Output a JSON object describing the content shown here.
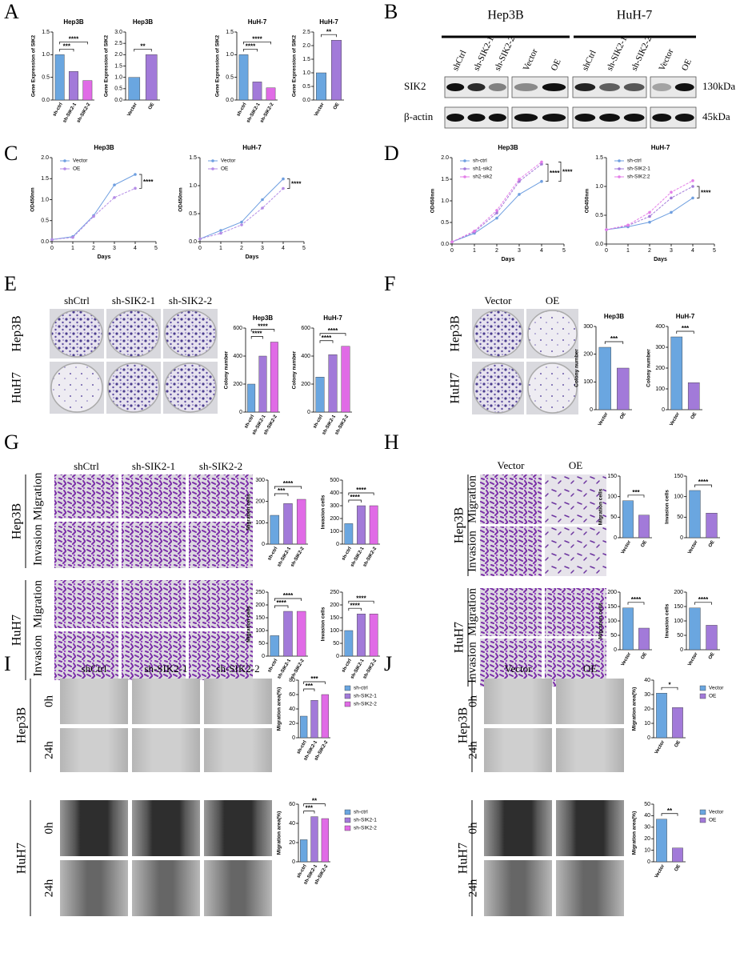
{
  "panel_labels": [
    "A",
    "B",
    "C",
    "D",
    "E",
    "F",
    "G",
    "H",
    "I",
    "J"
  ],
  "blot": {
    "groups": [
      "Hep3B",
      "HuH-7"
    ],
    "lanes": [
      [
        "shCtrl",
        "sh-SIK2-1",
        "sh-SIK2-2"
      ],
      [
        "Vector",
        "OE"
      ],
      [
        "shCtrl",
        "sh-SIK2-1",
        "sh-SIK2-2"
      ],
      [
        "Vector",
        "OE"
      ]
    ],
    "proteins": [
      "SIK2",
      "β-actin"
    ],
    "sizes": [
      "130kDa",
      "45kDa"
    ]
  },
  "image_panels": {
    "E": {
      "columns": [
        "shCtrl",
        "sh-SIK2-1",
        "sh-SIK2-2"
      ],
      "rows": [
        "Hep3B",
        "HuH7"
      ]
    },
    "F": {
      "columns": [
        "Vector",
        "OE"
      ],
      "rows": [
        "Hep3B",
        "HuH7"
      ]
    },
    "G": {
      "columns": [
        "shCtrl",
        "sh-SIK2-1",
        "sh-SIK2-2"
      ],
      "rows": [
        "Hep3B",
        "HuH7"
      ],
      "subrows": [
        [
          "Migration",
          "Invasion"
        ],
        [
          "Migration",
          "Invasion"
        ]
      ]
    },
    "H": {
      "columns": [
        "Vector",
        "OE"
      ],
      "rows": [
        "Hep3B",
        "HuH7"
      ],
      "subrows": [
        [
          "Migration",
          "Invasion"
        ],
        [
          "Migration",
          "Invasion"
        ]
      ]
    },
    "I": {
      "columns": [
        "shCtrl",
        "sh-SIK2-1",
        "sh-SIK2-2"
      ],
      "rows": [
        "Hep3B",
        "HuH7"
      ],
      "subrows": [
        [
          "0h",
          "24h"
        ],
        [
          "0h",
          "24h"
        ]
      ]
    },
    "J": {
      "columns": [
        "Vector",
        "OE"
      ],
      "rows": [
        "Hep3B",
        "HuH7"
      ],
      "subrows": [
        [
          "0h",
          "24h"
        ],
        [
          "0h",
          "24h"
        ]
      ]
    }
  },
  "chart_data": [
    {
      "type": "bar",
      "title": "Hep3B",
      "y_label": "Gene Expression of SIK2",
      "categories": [
        "sh-ctrl",
        "sh-SIK2-1",
        "sh-SIK2-2"
      ],
      "values": [
        1.0,
        0.63,
        0.43
      ],
      "colors": [
        "#6aa6e0",
        "#a27ad9",
        "#e06be6"
      ],
      "ylim": [
        0,
        1.5
      ],
      "yticks": [
        {
          "value": 0,
          "label": "0.0"
        },
        {
          "value": 0.5,
          "label": "0.5"
        },
        {
          "value": 1,
          "label": "1.0"
        },
        {
          "value": 1.5,
          "label": "1.5"
        }
      ],
      "annotations": [
        "***",
        "****"
      ]
    },
    {
      "type": "bar",
      "title": "Hep3B",
      "y_label": "Gene Expression of SIK2",
      "categories": [
        "Vector",
        "OE"
      ],
      "values": [
        1.0,
        2.0
      ],
      "colors": [
        "#6aa6e0",
        "#a27ad9"
      ],
      "ylim": [
        0,
        3
      ],
      "yticks": [
        {
          "value": 0,
          "label": "0.0"
        },
        {
          "value": 0.5,
          "label": "0.5"
        },
        {
          "value": 1,
          "label": "1.0"
        },
        {
          "value": 1.5,
          "label": "1.5"
        },
        {
          "value": 2,
          "label": "2.0"
        },
        {
          "value": 2.5,
          "label": "2.5"
        },
        {
          "value": 3,
          "label": "3.0"
        }
      ],
      "annotations": [
        "**"
      ]
    },
    {
      "type": "bar",
      "title": "HuH-7",
      "y_label": "Gene Expression of SIK2",
      "categories": [
        "sh-ctrl",
        "sh-SIK2-1",
        "sh-SIK2-2"
      ],
      "values": [
        1.0,
        0.4,
        0.27
      ],
      "colors": [
        "#6aa6e0",
        "#a27ad9",
        "#e06be6"
      ],
      "ylim": [
        0,
        1.5
      ],
      "yticks": [
        {
          "value": 0,
          "label": "0.0"
        },
        {
          "value": 0.5,
          "label": "0.5"
        },
        {
          "value": 1,
          "label": "1.0"
        },
        {
          "value": 1.5,
          "label": "1.5"
        }
      ],
      "annotations": [
        "****",
        "****"
      ]
    },
    {
      "type": "bar",
      "title": "HuH-7",
      "y_label": "Gene Expression of SIK2",
      "categories": [
        "Vector",
        "OE"
      ],
      "values": [
        1.0,
        2.2
      ],
      "colors": [
        "#6aa6e0",
        "#a27ad9"
      ],
      "ylim": [
        0,
        2.5
      ],
      "yticks": [
        {
          "value": 0,
          "label": "0.0"
        },
        {
          "value": 0.5,
          "label": "0.5"
        },
        {
          "value": 1,
          "label": "1.0"
        },
        {
          "value": 1.5,
          "label": "1.5"
        },
        {
          "value": 2,
          "label": "2.0"
        },
        {
          "value": 2.5,
          "label": "2.5"
        }
      ],
      "annotations": [
        "**"
      ]
    },
    {
      "type": "line",
      "title": "Hep3B",
      "x_label": "Days",
      "y_label": "OD450nm",
      "x": [
        0,
        1,
        2,
        3,
        4
      ],
      "series": [
        {
          "name": "Vector",
          "color": "#6f9fe0",
          "values": [
            0.05,
            0.12,
            0.62,
            1.35,
            1.6
          ]
        },
        {
          "name": "OE",
          "color": "#b48ce6",
          "values": [
            0.05,
            0.1,
            0.6,
            1.05,
            1.27
          ]
        }
      ],
      "xlim": [
        0,
        5
      ],
      "xticks": [
        0,
        1,
        2,
        3,
        4,
        5
      ],
      "ylim": [
        0,
        2
      ],
      "yticks": [
        {
          "value": 0,
          "label": "0.0"
        },
        {
          "value": 0.5,
          "label": "0.5"
        },
        {
          "value": 1,
          "label": "1.0"
        },
        {
          "value": 1.5,
          "label": "1.5"
        },
        {
          "value": 2,
          "label": "2.0"
        }
      ],
      "annotations": [
        "****"
      ]
    },
    {
      "type": "line",
      "title": "HuH-7",
      "x_label": "Days",
      "y_label": "OD450nm",
      "x": [
        0,
        1,
        2,
        3,
        4
      ],
      "series": [
        {
          "name": "Vector",
          "color": "#6f9fe0",
          "values": [
            0.05,
            0.2,
            0.35,
            0.75,
            1.12
          ]
        },
        {
          "name": "OE",
          "color": "#b48ce6",
          "values": [
            0.05,
            0.15,
            0.3,
            0.6,
            0.95
          ]
        }
      ],
      "xlim": [
        0,
        5
      ],
      "xticks": [
        0,
        1,
        2,
        3,
        4,
        5
      ],
      "ylim": [
        0,
        1.5
      ],
      "yticks": [
        {
          "value": 0,
          "label": "0.0"
        },
        {
          "value": 0.5,
          "label": "0.5"
        },
        {
          "value": 1,
          "label": "1.0"
        },
        {
          "value": 1.5,
          "label": "1.5"
        }
      ],
      "annotations": [
        "****"
      ]
    },
    {
      "type": "line",
      "title": "Hep3B",
      "x_label": "Days",
      "y_label": "OD450nm",
      "x": [
        0,
        1,
        2,
        3,
        4
      ],
      "series": [
        {
          "name": "sh-ctrl",
          "color": "#6f9fe0",
          "values": [
            0.05,
            0.25,
            0.6,
            1.15,
            1.45
          ]
        },
        {
          "name": "sh1-sik2",
          "color": "#a27ad9",
          "values": [
            0.05,
            0.28,
            0.72,
            1.45,
            1.85
          ]
        },
        {
          "name": "sh2-sik2",
          "color": "#e47ee8",
          "values": [
            0.05,
            0.3,
            0.78,
            1.5,
            1.9
          ]
        }
      ],
      "xlim": [
        0,
        5
      ],
      "xticks": [
        0,
        1,
        2,
        3,
        4,
        5
      ],
      "ylim": [
        0,
        2
      ],
      "yticks": [
        {
          "value": 0,
          "label": "0.0"
        },
        {
          "value": 0.5,
          "label": "0.5"
        },
        {
          "value": 1,
          "label": "1.0"
        },
        {
          "value": 1.5,
          "label": "1.5"
        },
        {
          "value": 2,
          "label": "2.0"
        }
      ],
      "annotations": [
        "****",
        "****"
      ]
    },
    {
      "type": "line",
      "title": "HuH-7",
      "x_label": "Days",
      "y_label": "OD450nm",
      "x": [
        0,
        1,
        2,
        3,
        4
      ],
      "series": [
        {
          "name": "sh-ctrl",
          "color": "#6f9fe0",
          "values": [
            0.25,
            0.3,
            0.38,
            0.55,
            0.8
          ]
        },
        {
          "name": "sh-SIK2-1",
          "color": "#a27ad9",
          "values": [
            0.25,
            0.32,
            0.48,
            0.8,
            1.0
          ]
        },
        {
          "name": "sh-SIK2:2",
          "color": "#e47ee8",
          "values": [
            0.25,
            0.33,
            0.55,
            0.9,
            1.1
          ]
        }
      ],
      "xlim": [
        0,
        5
      ],
      "xticks": [
        0,
        1,
        2,
        3,
        4,
        5
      ],
      "ylim": [
        0,
        1.5
      ],
      "yticks": [
        {
          "value": 0,
          "label": "0.0"
        },
        {
          "value": 0.5,
          "label": "0.5"
        },
        {
          "value": 1,
          "label": "1.0"
        },
        {
          "value": 1.5,
          "label": "1.5"
        }
      ],
      "annotations": [
        "****"
      ]
    },
    {
      "type": "bar",
      "title": "Hep3B",
      "y_label": "Colony number",
      "categories": [
        "sh-ctrl",
        "sh-SIK2-1",
        "sh-SIK2-2"
      ],
      "values": [
        200,
        400,
        500
      ],
      "colors": [
        "#6aa6e0",
        "#a27ad9",
        "#e06be6"
      ],
      "ylim": [
        0,
        600
      ],
      "yticks": [
        0,
        200,
        400,
        600
      ],
      "annotations": [
        "****",
        "****"
      ]
    },
    {
      "type": "bar",
      "title": "HuH-7",
      "y_label": "Colony number",
      "categories": [
        "sh-ctrl",
        "sh-SIK2-1",
        "sh-SIK2-2"
      ],
      "values": [
        250,
        410,
        470
      ],
      "colors": [
        "#6aa6e0",
        "#a27ad9",
        "#e06be6"
      ],
      "ylim": [
        0,
        600
      ],
      "yticks": [
        0,
        200,
        400,
        600
      ],
      "annotations": [
        "****",
        "****"
      ]
    },
    {
      "type": "bar",
      "title": "Hep3B",
      "y_label": "Colony number",
      "categories": [
        "Vector",
        "OE"
      ],
      "values": [
        225,
        150
      ],
      "colors": [
        "#6aa6e0",
        "#a27ad9"
      ],
      "ylim": [
        0,
        300
      ],
      "yticks": [
        0,
        100,
        200,
        300
      ],
      "annotations": [
        "***"
      ]
    },
    {
      "type": "bar",
      "title": "HuH-7",
      "y_label": "Colony number",
      "categories": [
        "Vector",
        "OE"
      ],
      "values": [
        350,
        130
      ],
      "colors": [
        "#6aa6e0",
        "#a27ad9"
      ],
      "ylim": [
        0,
        400
      ],
      "yticks": [
        0,
        100,
        200,
        300,
        400
      ],
      "annotations": [
        "***"
      ]
    },
    {
      "type": "bar",
      "y_label": "Migration cells",
      "categories": [
        "sh-ctrl",
        "sh-SIK2-1",
        "sh-SIK2-2"
      ],
      "values": [
        135,
        190,
        210
      ],
      "colors": [
        "#6aa6e0",
        "#a27ad9",
        "#e06be6"
      ],
      "ylim": [
        0,
        300
      ],
      "yticks": [
        0,
        100,
        200,
        300
      ],
      "annotations": [
        "***",
        "****"
      ]
    },
    {
      "type": "bar",
      "y_label": "Invasion cells",
      "categories": [
        "sh-ctrl",
        "sh-SIK2-1",
        "sh-SIK2-2"
      ],
      "values": [
        160,
        300,
        300
      ],
      "colors": [
        "#6aa6e0",
        "#a27ad9",
        "#e06be6"
      ],
      "ylim": [
        0,
        500
      ],
      "yticks": [
        0,
        100,
        200,
        300,
        400,
        500
      ],
      "annotations": [
        "****",
        "****"
      ]
    },
    {
      "type": "bar",
      "y_label": "Migration cells",
      "categories": [
        "sh-ctrl",
        "sh-SIK2-1",
        "sh-SIK2-2"
      ],
      "values": [
        80,
        175,
        175
      ],
      "colors": [
        "#6aa6e0",
        "#a27ad9",
        "#e06be6"
      ],
      "ylim": [
        0,
        250
      ],
      "yticks": [
        0,
        50,
        100,
        150,
        200,
        250
      ],
      "annotations": [
        "****",
        "****"
      ]
    },
    {
      "type": "bar",
      "y_label": "Invasion cells",
      "categories": [
        "sh-ctrl",
        "sh-SIK2-1",
        "sh-SIK2-2"
      ],
      "values": [
        100,
        165,
        165
      ],
      "colors": [
        "#6aa6e0",
        "#a27ad9",
        "#e06be6"
      ],
      "ylim": [
        0,
        250
      ],
      "yticks": [
        0,
        50,
        100,
        150,
        200,
        250
      ],
      "annotations": [
        "****",
        "****"
      ]
    },
    {
      "type": "bar",
      "y_label": "Migration cells",
      "categories": [
        "Vector",
        "OE"
      ],
      "values": [
        90,
        55
      ],
      "colors": [
        "#6aa6e0",
        "#a27ad9"
      ],
      "ylim": [
        0,
        150
      ],
      "yticks": [
        0,
        50,
        100,
        150
      ],
      "annotations": [
        "***"
      ]
    },
    {
      "type": "bar",
      "y_label": "Invasion cells",
      "categories": [
        "Vector",
        "OE"
      ],
      "values": [
        115,
        60
      ],
      "colors": [
        "#6aa6e0",
        "#a27ad9"
      ],
      "ylim": [
        0,
        150
      ],
      "yticks": [
        0,
        50,
        100,
        150
      ],
      "annotations": [
        "****"
      ]
    },
    {
      "type": "bar",
      "y_label": "Migration cells",
      "categories": [
        "Vector",
        "OE"
      ],
      "values": [
        145,
        75
      ],
      "colors": [
        "#6aa6e0",
        "#a27ad9"
      ],
      "ylim": [
        0,
        200
      ],
      "yticks": [
        0,
        50,
        100,
        150,
        200
      ],
      "annotations": [
        "****"
      ]
    },
    {
      "type": "bar",
      "y_label": "Invasion cells",
      "categories": [
        "Vector",
        "OE"
      ],
      "values": [
        145,
        85
      ],
      "colors": [
        "#6aa6e0",
        "#a27ad9"
      ],
      "ylim": [
        0,
        200
      ],
      "yticks": [
        0,
        50,
        100,
        150,
        200
      ],
      "annotations": [
        "****"
      ]
    },
    {
      "type": "bar",
      "y_label": "Migration area(%)",
      "categories": [
        "sh-ctrl",
        "sh-SIK2-1",
        "sh-SIK2-2"
      ],
      "values": [
        30,
        52,
        60
      ],
      "colors": [
        "#6aa6e0",
        "#a27ad9",
        "#e06be6"
      ],
      "ylim": [
        0,
        80
      ],
      "yticks": [
        0,
        20,
        40,
        60,
        80
      ],
      "annotations": [
        "***",
        "***"
      ],
      "legend": true
    },
    {
      "type": "bar",
      "y_label": "Migration area(%)",
      "categories": [
        "sh-ctrl",
        "sh-SIK2-1",
        "sh-SIK2-2"
      ],
      "values": [
        23,
        47,
        45
      ],
      "colors": [
        "#6aa6e0",
        "#a27ad9",
        "#e06be6"
      ],
      "ylim": [
        0,
        60
      ],
      "yticks": [
        0,
        20,
        40,
        60
      ],
      "annotations": [
        "***",
        "**"
      ],
      "legend": true
    },
    {
      "type": "bar",
      "y_label": "Migration area(%)",
      "categories": [
        "Vector",
        "OE"
      ],
      "values": [
        31,
        21
      ],
      "colors": [
        "#6aa6e0",
        "#a27ad9"
      ],
      "ylim": [
        0,
        40
      ],
      "yticks": [
        0,
        10,
        20,
        30,
        40
      ],
      "annotations": [
        "*"
      ],
      "legend": true
    },
    {
      "type": "bar",
      "y_label": "Migration area(%)",
      "categories": [
        "Vector",
        "OE"
      ],
      "values": [
        37,
        12
      ],
      "colors": [
        "#6aa6e0",
        "#a27ad9"
      ],
      "ylim": [
        0,
        50
      ],
      "yticks": [
        0,
        10,
        20,
        30,
        40,
        50
      ],
      "annotations": [
        "**"
      ],
      "legend": true
    }
  ]
}
